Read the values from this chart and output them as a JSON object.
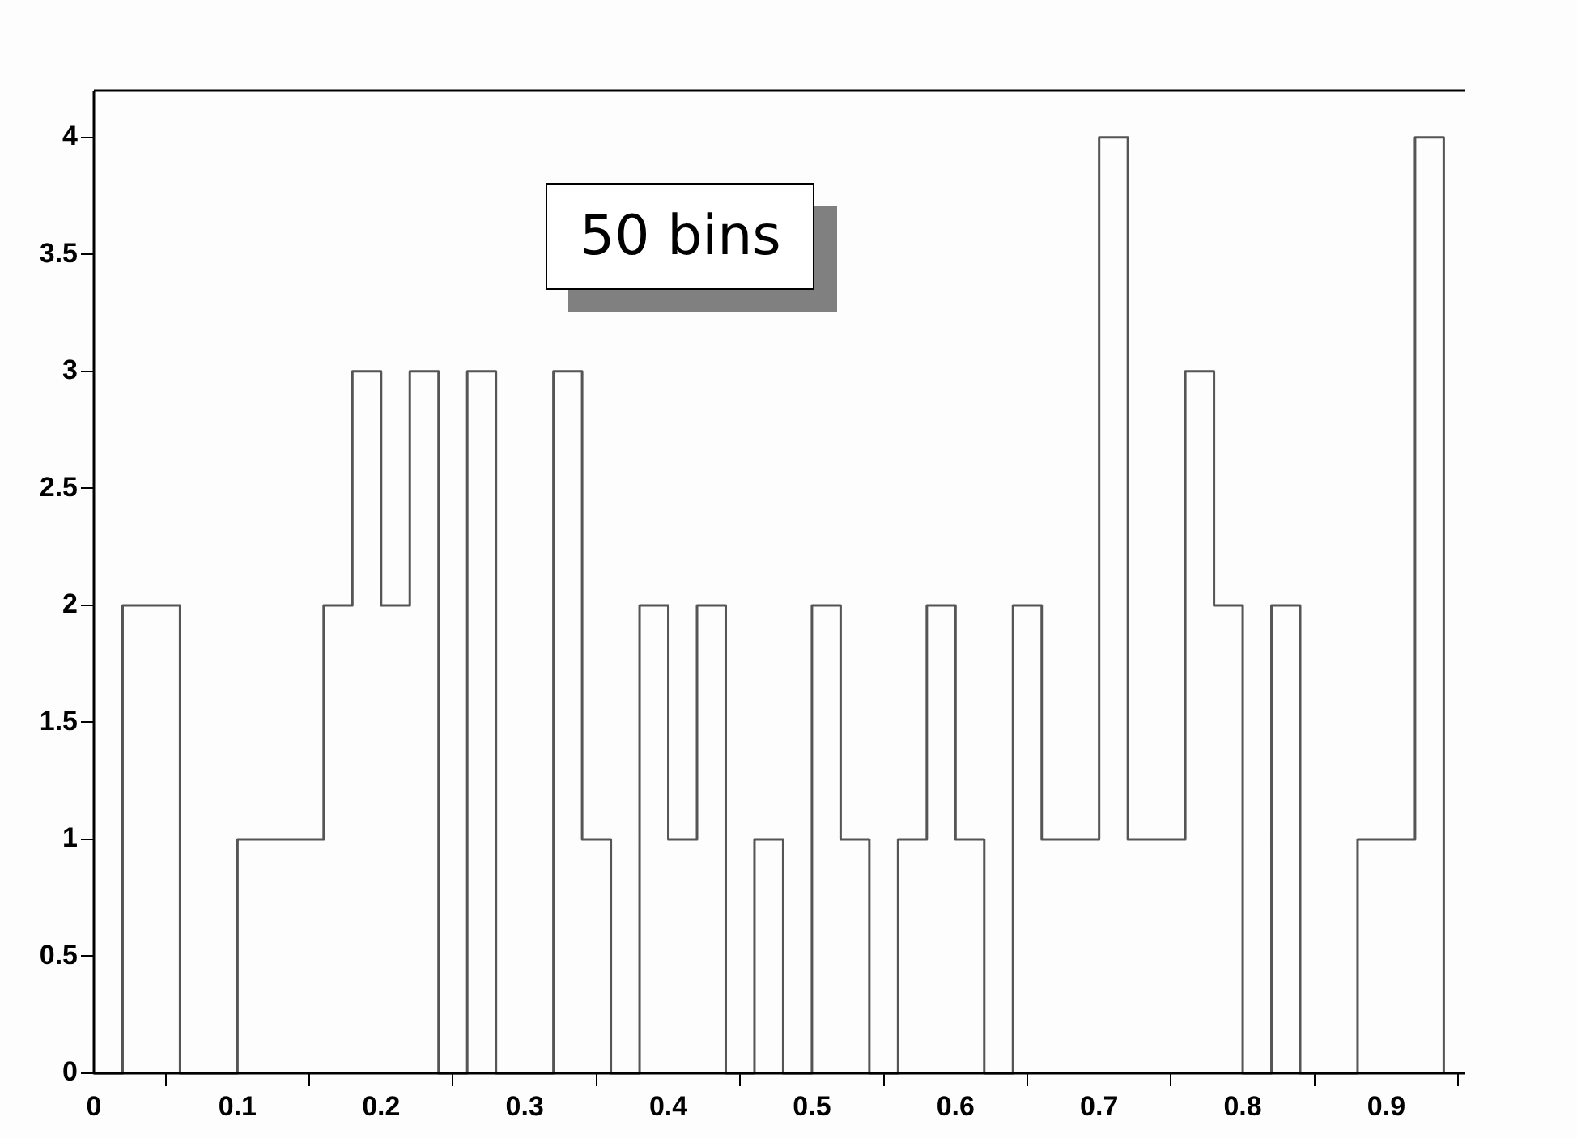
{
  "chart_data": {
    "type": "histogram",
    "bins": [
      0,
      0.02,
      0.04,
      0.06,
      0.08,
      0.1,
      0.12,
      0.14,
      0.16,
      0.18,
      0.2,
      0.22,
      0.24,
      0.26,
      0.28,
      0.3,
      0.32,
      0.34,
      0.36,
      0.38,
      0.4,
      0.42,
      0.44,
      0.46,
      0.48,
      0.5,
      0.52,
      0.54,
      0.56,
      0.58,
      0.6,
      0.62,
      0.64,
      0.66,
      0.68,
      0.7,
      0.72,
      0.74,
      0.76,
      0.78,
      0.8,
      0.82,
      0.84,
      0.86,
      0.88,
      0.9,
      0.92,
      0.94
    ],
    "values": [
      0,
      2,
      2,
      0,
      0,
      1,
      1,
      1,
      2,
      3,
      2,
      3,
      0,
      3,
      0,
      0,
      3,
      1,
      0,
      2,
      1,
      2,
      0,
      1,
      0,
      2,
      1,
      0,
      1,
      2,
      1,
      0,
      2,
      1,
      1,
      4,
      1,
      1,
      3,
      2,
      0,
      2,
      0,
      0,
      1,
      1,
      4
    ],
    "color": "#555555",
    "annotations": [
      "50 bins"
    ],
    "xlim": [
      0,
      0.955
    ],
    "xticks": [
      0,
      0.1,
      0.2,
      0.3,
      0.4,
      0.5,
      0.6,
      0.7,
      0.8,
      0.9
    ],
    "ylim": [
      0,
      4.2
    ],
    "yticks": [
      0,
      0.5,
      1,
      1.5,
      2,
      2.5,
      3,
      3.5,
      4
    ],
    "grid": false,
    "legend": false
  }
}
